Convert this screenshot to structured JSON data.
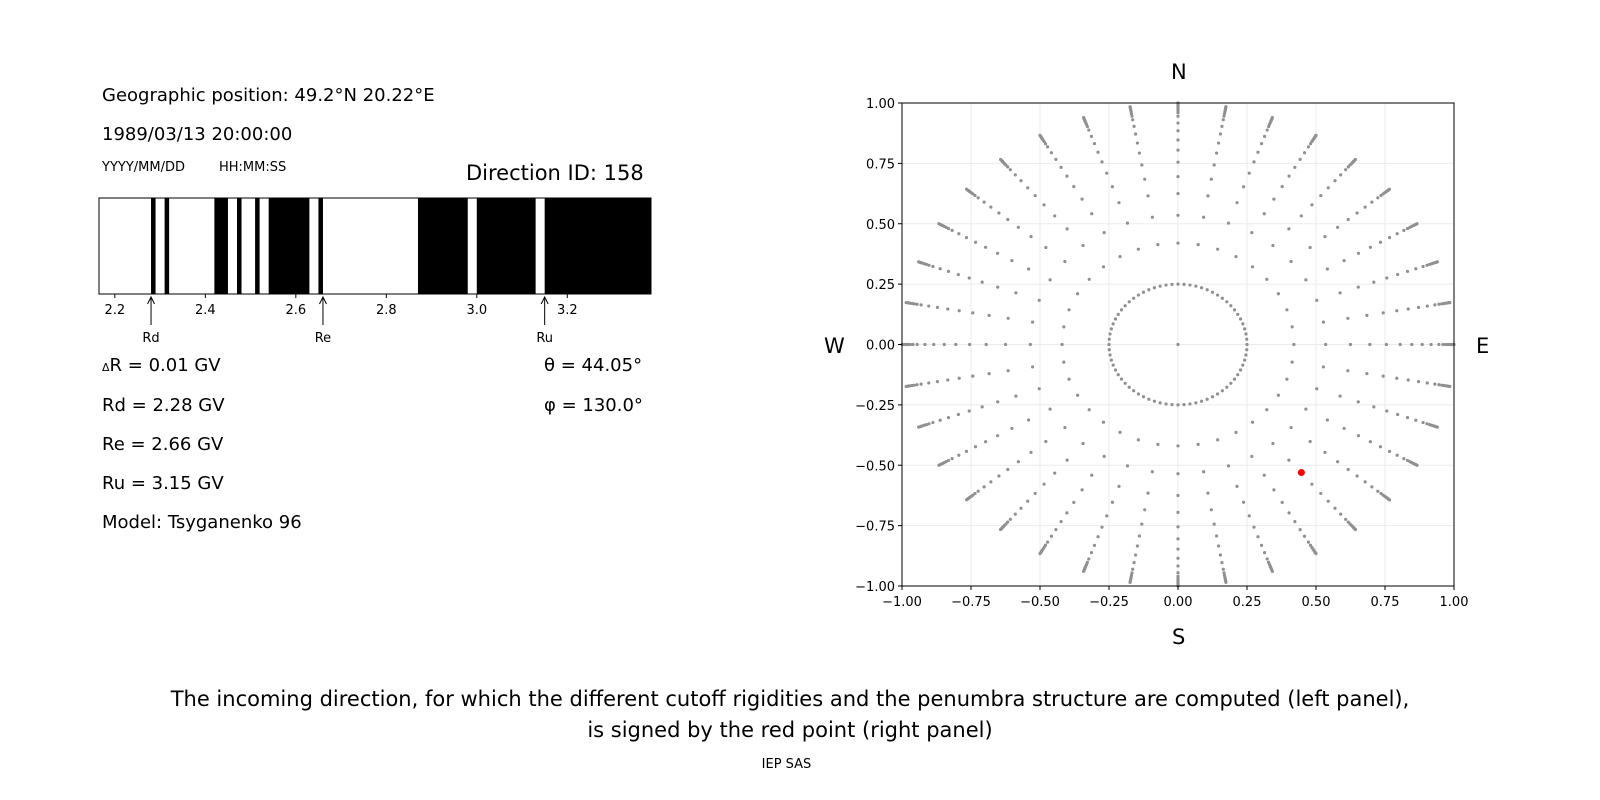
{
  "info": {
    "geo_position": "Geographic position: 49.2°N 20.22°E",
    "datetime": "1989/03/13 20:00:00",
    "date_format": "YYYY/MM/DD",
    "time_format": "HH:MM:SS",
    "direction_id": "Direction ID: 158",
    "delta_r_symbol": "Δ",
    "delta_r": "R = 0.01 GV",
    "rd": "Rd = 2.28 GV",
    "re": "Re = 2.66 GV",
    "ru": "Ru = 3.15 GV",
    "model": "Model: Tsyganenko 96",
    "theta": "θ = 44.05°",
    "phi": "φ = 130.0°"
  },
  "caption": {
    "line1": "The incoming direction, for which the different cutoff rigidities and the penumbra structure are computed (left panel),",
    "line2": "is signed by the red point (right panel)"
  },
  "footer": "IEP SAS",
  "chart_data": [
    {
      "type": "penumbra-bar",
      "xlim": [
        2.165,
        3.385
      ],
      "xticks": [
        2.2,
        2.4,
        2.6,
        2.8,
        3.0,
        3.2
      ],
      "xtick_labels": [
        "2.2",
        "2.4",
        "2.6",
        "2.8",
        "3.0",
        "3.2"
      ],
      "forbidden_bands": [
        [
          2.28,
          2.29
        ],
        [
          2.31,
          2.32
        ],
        [
          2.42,
          2.45
        ],
        [
          2.47,
          2.48
        ],
        [
          2.51,
          2.52
        ],
        [
          2.54,
          2.63
        ],
        [
          2.65,
          2.66
        ],
        [
          2.87,
          2.98
        ],
        [
          3.0,
          3.13
        ],
        [
          3.15,
          3.385
        ]
      ],
      "colors": {
        "forbidden": "#000000",
        "allowed": "#ffffff"
      },
      "markers": [
        {
          "label": "Rd",
          "value": 2.28
        },
        {
          "label": "Re",
          "value": 2.66
        },
        {
          "label": "Ru",
          "value": 3.15
        }
      ]
    },
    {
      "type": "scatter",
      "xlim": [
        -1,
        1
      ],
      "ylim": [
        -1,
        1
      ],
      "xticks": [
        "−1.00",
        "−0.75",
        "−0.50",
        "−0.25",
        "0.00",
        "0.25",
        "0.50",
        "0.75",
        "1.00"
      ],
      "yticks": [
        "−1.00",
        "−0.75",
        "−0.50",
        "−0.25",
        "0.00",
        "0.25",
        "0.50",
        "0.75",
        "1.00"
      ],
      "grid": true,
      "compass": {
        "top": "N",
        "bottom": "S",
        "left": "W",
        "right": "E"
      },
      "grid_points": {
        "azimuth_step_deg": 10,
        "radii": [
          0,
          0.25,
          0.42,
          0.535,
          0.625,
          0.695,
          0.755,
          0.805,
          0.847,
          0.885,
          0.917,
          0.945,
          0.96,
          0.97,
          0.978,
          0.985,
          0.99,
          0.995,
          1.0
        ],
        "color": "#909090"
      },
      "selected_point": {
        "x": 0.447,
        "y": -0.53,
        "color": "#ff0000"
      }
    }
  ]
}
